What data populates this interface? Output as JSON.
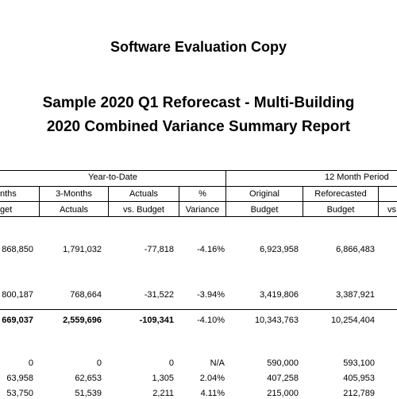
{
  "eval_banner": "Software Evaluation Copy",
  "report_title": "Sample 2020 Q1 Reforecast - Multi-Building",
  "report_subtitle": "2020 Combined Variance Summary Report",
  "group_headers": {
    "ytd": "Year-to-Date",
    "period": "12 Month Period"
  },
  "columns": [
    {
      "h1": "nths",
      "h2": "get"
    },
    {
      "h1": "3-Months",
      "h2": "Actuals"
    },
    {
      "h1": "Actuals",
      "h2": "vs. Budget"
    },
    {
      "h1": "%",
      "h2": "Variance"
    },
    {
      "h1": "Original",
      "h2": "Budget"
    },
    {
      "h1": "Reforecasted",
      "h2": "Budget"
    },
    {
      "h1": "",
      "h2": "vs"
    }
  ],
  "rows": [
    {
      "cells": [
        "868,850",
        "1,791,032",
        "-77,818",
        "-4.16%",
        "6,923,958",
        "6,866,483"
      ]
    },
    {
      "cells": [
        "800,187",
        "768,664",
        "-31,522",
        "-3.94%",
        "3,419,806",
        "3,387,921"
      ]
    },
    {
      "cells": [
        "669,037",
        "2,559,696",
        "-109,341",
        "-4.10%",
        "10,343,763",
        "10,254,404"
      ]
    },
    {
      "cells": [
        "0",
        "0",
        "0",
        "N/A",
        "590,000",
        "593,100"
      ]
    },
    {
      "cells": [
        "63,958",
        "62,653",
        "1,305",
        "2.04%",
        "407,258",
        "405,953"
      ]
    },
    {
      "cells": [
        "53,750",
        "51,539",
        "2,211",
        "4.11%",
        "215,000",
        "212,789"
      ]
    }
  ]
}
